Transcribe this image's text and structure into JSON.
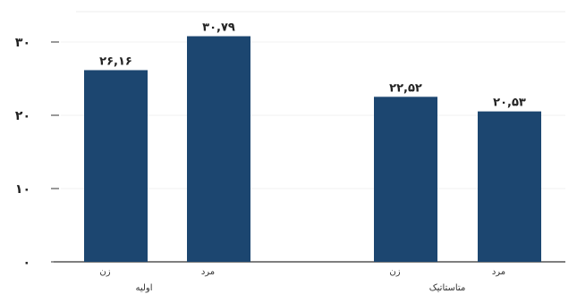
{
  "chart_data": {
    "type": "bar",
    "title": "",
    "xlabel": "",
    "ylabel": "",
    "ylim": [
      0,
      30
    ],
    "yticks": [
      {
        "value": 0,
        "label": "۰"
      },
      {
        "value": 10,
        "label": "۱۰"
      },
      {
        "value": 20,
        "label": "۲۰"
      },
      {
        "value": 30,
        "label": "۳۰"
      }
    ],
    "grid": true,
    "bar_color": "#1c4670",
    "groups": [
      {
        "label": "اولیه",
        "bars": [
          {
            "category": "زن",
            "value": 26.16,
            "value_label": "۲۶,۱۶"
          },
          {
            "category": "مرد",
            "value": 30.79,
            "value_label": "۳۰,۷۹"
          }
        ]
      },
      {
        "label": "متاستاتیک",
        "bars": [
          {
            "category": "زن",
            "value": 22.52,
            "value_label": "۲۲,۵۲"
          },
          {
            "category": "مرد",
            "value": 20.53,
            "value_label": "۲۰,۵۳"
          }
        ]
      }
    ]
  }
}
